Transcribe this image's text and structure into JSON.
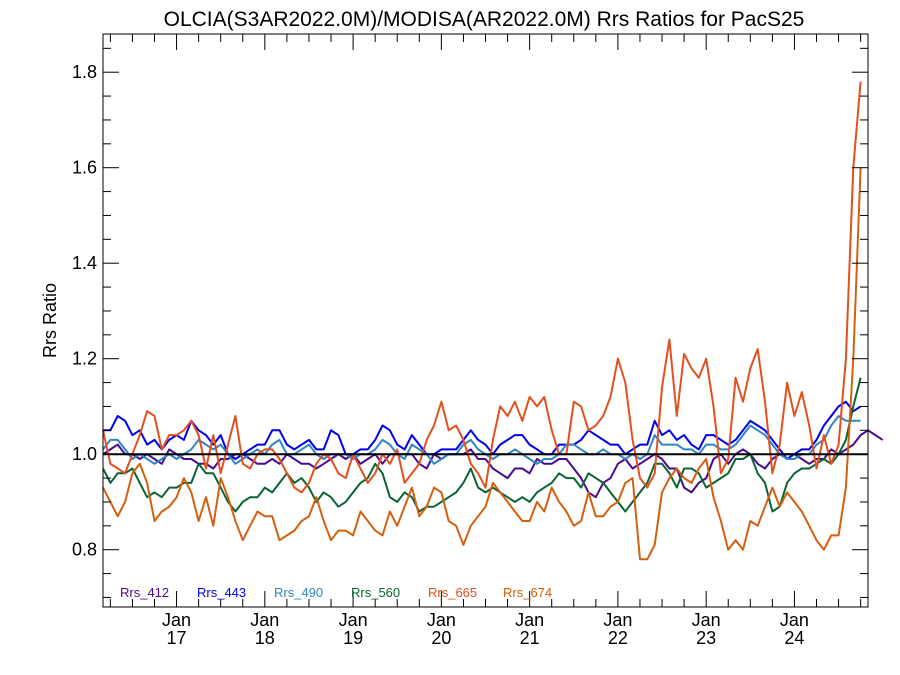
{
  "chart_data": {
    "type": "line",
    "title": "OLCIA(S3AR2022.0M)/MODISA(AR2022.0M)  Rrs Ratios for PacS25",
    "xlabel": "",
    "ylabel": "Rrs Ratio",
    "xlim": [
      "2016-03-01",
      "2024-11-01"
    ],
    "ylim": [
      0.68,
      1.88
    ],
    "yticks": [
      0.8,
      1.0,
      1.2,
      1.4,
      1.6,
      1.8
    ],
    "ytick_labels": [
      "0.8",
      "1.0",
      "1.2",
      "1.4",
      "1.6",
      "1.8"
    ],
    "xticks": [
      {
        "date": "2017-01-01",
        "month": "Jan",
        "year": "17"
      },
      {
        "date": "2018-01-01",
        "month": "Jan",
        "year": "18"
      },
      {
        "date": "2019-01-01",
        "month": "Jan",
        "year": "19"
      },
      {
        "date": "2020-01-01",
        "month": "Jan",
        "year": "20"
      },
      {
        "date": "2021-01-01",
        "month": "Jan",
        "year": "21"
      },
      {
        "date": "2022-01-01",
        "month": "Jan",
        "year": "22"
      },
      {
        "date": "2023-01-01",
        "month": "Jan",
        "year": "23"
      },
      {
        "date": "2024-01-01",
        "month": "Jan",
        "year": "24"
      }
    ],
    "reference_line": 1.0,
    "grid": false,
    "legend_position": "bottom-left",
    "x_start": "2016-03",
    "x_step": "1 month",
    "series": [
      {
        "name": "Rrs_412",
        "color": "#4a0a8e",
        "values": [
          1.0,
          1.01,
          1.02,
          1.0,
          1.0,
          0.99,
          1.0,
          0.99,
          0.98,
          1.01,
          1.0,
          0.99,
          0.99,
          0.98,
          0.98,
          0.97,
          0.99,
          0.99,
          1.0,
          1.0,
          0.99,
          0.98,
          0.98,
          0.99,
          0.98,
          1.0,
          0.99,
          0.98,
          0.98,
          0.97,
          0.98,
          0.99,
          1.0,
          0.99,
          1.0,
          0.98,
          0.99,
          1.0,
          0.98,
          1.0,
          1.0,
          1.0,
          1.0,
          0.98,
          0.97,
          1.0,
          0.99,
          1.0,
          1.0,
          1.0,
          1.01,
          0.99,
          0.99,
          0.97,
          0.96,
          0.95,
          0.97,
          0.97,
          0.96,
          0.99,
          0.98,
          0.98,
          0.99,
          0.99,
          0.97,
          0.95,
          0.92,
          0.91,
          0.94,
          0.95,
          0.98,
          0.99,
          0.97,
          0.98,
          0.99,
          1.0,
          0.99,
          0.97,
          0.97,
          0.93,
          0.92,
          0.94,
          0.95,
          0.99,
          1.0,
          0.98,
          1.0,
          1.01,
          1.0,
          0.98,
          0.97,
          0.99,
          1.0,
          1.0,
          1.0,
          0.99,
          0.98,
          0.99,
          0.99,
          1.01,
          1.0,
          1.01,
          1.02,
          1.04,
          1.05,
          1.04,
          1.03
        ]
      },
      {
        "name": "Rrs_443",
        "color": "#0000ee",
        "values": [
          1.05,
          1.05,
          1.08,
          1.07,
          1.04,
          1.05,
          1.02,
          1.03,
          1.01,
          1.03,
          1.04,
          1.03,
          1.07,
          1.05,
          1.04,
          1.02,
          1.04,
          1.0,
          0.99,
          1.0,
          1.01,
          1.02,
          1.02,
          1.05,
          1.05,
          1.02,
          1.01,
          1.02,
          1.03,
          1.01,
          1.01,
          1.05,
          1.04,
          1.0,
          1.0,
          1.01,
          1.01,
          1.03,
          1.06,
          1.05,
          1.02,
          1.01,
          1.04,
          1.02,
          1.0,
          1.0,
          1.01,
          1.01,
          1.01,
          1.03,
          1.05,
          1.03,
          1.02,
          1.0,
          1.02,
          1.03,
          1.04,
          1.04,
          1.02,
          1.01,
          1.0,
          1.0,
          1.02,
          1.02,
          1.02,
          1.03,
          1.05,
          1.04,
          1.03,
          1.02,
          1.02,
          1.0,
          1.01,
          1.02,
          1.02,
          1.07,
          1.04,
          1.05,
          1.03,
          1.04,
          1.02,
          1.01,
          1.04,
          1.04,
          1.03,
          1.02,
          1.03,
          1.05,
          1.07,
          1.06,
          1.05,
          1.03,
          1.01,
          0.99,
          1.0,
          1.01,
          1.01,
          1.03,
          1.06,
          1.08,
          1.1,
          1.11,
          1.09,
          1.1
        ]
      },
      {
        "name": "Rrs_490",
        "color": "#2f86c5",
        "values": [
          1.01,
          1.03,
          1.03,
          1.01,
          0.99,
          1.0,
          0.99,
          0.98,
          0.99,
          1.0,
          0.99,
          1.0,
          1.01,
          1.03,
          1.02,
          1.01,
          1.02,
          1.0,
          0.98,
          0.99,
          1.0,
          1.01,
          1.0,
          1.02,
          1.03,
          1.0,
          1.0,
          1.01,
          1.02,
          1.0,
          0.99,
          1.0,
          1.0,
          1.0,
          0.99,
          1.0,
          1.0,
          1.01,
          1.03,
          1.02,
          1.0,
          0.99,
          1.02,
          1.01,
          1.0,
          0.98,
          0.99,
          1.0,
          1.0,
          1.02,
          1.03,
          1.01,
          1.0,
          0.99,
          1.0,
          1.0,
          1.01,
          1.0,
          0.99,
          0.98,
          0.99,
          0.99,
          1.0,
          1.02,
          1.02,
          1.01,
          1.0,
          1.0,
          1.01,
          1.0,
          1.0,
          0.99,
          1.0,
          0.99,
          1.0,
          1.04,
          1.02,
          1.02,
          1.02,
          1.01,
          1.01,
          1.0,
          1.02,
          1.02,
          1.01,
          1.01,
          1.02,
          1.04,
          1.06,
          1.05,
          1.04,
          1.02,
          1.0,
          0.99,
          0.99,
          1.0,
          1.0,
          1.02,
          1.03,
          1.06,
          1.08,
          1.07,
          1.07,
          1.07
        ]
      },
      {
        "name": "Rrs_560",
        "color": "#0a6434",
        "values": [
          0.97,
          0.94,
          0.96,
          0.96,
          0.97,
          0.94,
          0.91,
          0.92,
          0.91,
          0.93,
          0.93,
          0.94,
          0.94,
          0.98,
          0.96,
          0.96,
          0.93,
          0.9,
          0.88,
          0.9,
          0.91,
          0.91,
          0.93,
          0.92,
          0.94,
          0.96,
          0.94,
          0.95,
          0.93,
          0.9,
          0.92,
          0.91,
          0.89,
          0.9,
          0.92,
          0.94,
          0.95,
          0.98,
          0.96,
          0.91,
          0.9,
          0.92,
          0.91,
          0.88,
          0.89,
          0.89,
          0.9,
          0.91,
          0.92,
          0.94,
          0.97,
          0.93,
          0.92,
          0.93,
          0.92,
          0.91,
          0.9,
          0.91,
          0.9,
          0.92,
          0.93,
          0.94,
          0.96,
          0.95,
          0.95,
          0.93,
          0.96,
          0.95,
          0.94,
          0.92,
          0.9,
          0.88,
          0.9,
          0.92,
          0.94,
          0.98,
          0.98,
          0.96,
          0.93,
          0.97,
          0.97,
          0.96,
          0.93,
          0.94,
          0.95,
          0.96,
          0.99,
          0.99,
          1.0,
          0.96,
          0.94,
          0.88,
          0.89,
          0.94,
          0.96,
          0.97,
          0.97,
          0.98,
          0.99,
          0.98,
          1.0,
          1.03,
          1.1,
          1.16
        ]
      },
      {
        "name": "Rrs_665",
        "color": "#e2501d",
        "values": [
          1.05,
          0.98,
          0.97,
          0.96,
          1.0,
          1.04,
          1.09,
          1.08,
          1.01,
          1.04,
          1.04,
          1.05,
          1.07,
          1.04,
          0.97,
          1.04,
          0.96,
          1.02,
          1.08,
          0.98,
          0.97,
          1.0,
          1.01,
          1.01,
          0.99,
          0.96,
          0.93,
          0.92,
          0.94,
          0.98,
          1.0,
          0.99,
          0.96,
          0.95,
          1.0,
          0.97,
          0.94,
          0.96,
          1.0,
          0.98,
          1.01,
          0.94,
          0.96,
          0.98,
          1.03,
          1.06,
          1.11,
          1.05,
          1.06,
          1.03,
          0.98,
          0.96,
          0.93,
          1.03,
          1.1,
          1.08,
          1.11,
          1.07,
          1.12,
          1.1,
          1.12,
          1.05,
          1.0,
          1.0,
          1.11,
          1.1,
          1.05,
          1.06,
          1.08,
          1.12,
          1.2,
          1.15,
          1.03,
          0.95,
          0.93,
          0.96,
          1.14,
          1.24,
          1.08,
          1.21,
          1.18,
          1.16,
          1.2,
          1.1,
          0.96,
          0.99,
          1.16,
          1.11,
          1.18,
          1.22,
          1.11,
          0.96,
          1.02,
          1.15,
          1.08,
          1.13,
          1.06,
          0.97,
          1.04,
          0.98,
          1.02,
          1.2,
          1.6,
          1.78
        ]
      },
      {
        "name": "Rrs_674",
        "color": "#d45f0e",
        "values": [
          0.93,
          0.9,
          0.87,
          0.9,
          0.96,
          0.98,
          0.94,
          0.86,
          0.88,
          0.89,
          0.91,
          0.95,
          0.92,
          0.86,
          0.91,
          0.85,
          0.95,
          0.91,
          0.86,
          0.82,
          0.85,
          0.88,
          0.87,
          0.87,
          0.82,
          0.83,
          0.84,
          0.86,
          0.87,
          0.91,
          0.86,
          0.82,
          0.84,
          0.84,
          0.83,
          0.88,
          0.86,
          0.84,
          0.83,
          0.88,
          0.85,
          0.89,
          0.93,
          0.87,
          0.89,
          0.93,
          0.92,
          0.86,
          0.85,
          0.81,
          0.85,
          0.87,
          0.89,
          0.94,
          0.92,
          0.9,
          0.88,
          0.86,
          0.86,
          0.9,
          0.88,
          0.93,
          0.9,
          0.88,
          0.85,
          0.86,
          0.92,
          0.87,
          0.87,
          0.89,
          0.9,
          0.94,
          0.95,
          0.78,
          0.78,
          0.81,
          0.92,
          0.95,
          0.97,
          0.95,
          0.94,
          0.97,
          0.99,
          0.91,
          0.86,
          0.8,
          0.82,
          0.8,
          0.86,
          0.85,
          0.89,
          0.93,
          0.89,
          0.92,
          0.9,
          0.88,
          0.85,
          0.82,
          0.8,
          0.83,
          0.83,
          0.93,
          1.2,
          1.6
        ]
      }
    ]
  }
}
